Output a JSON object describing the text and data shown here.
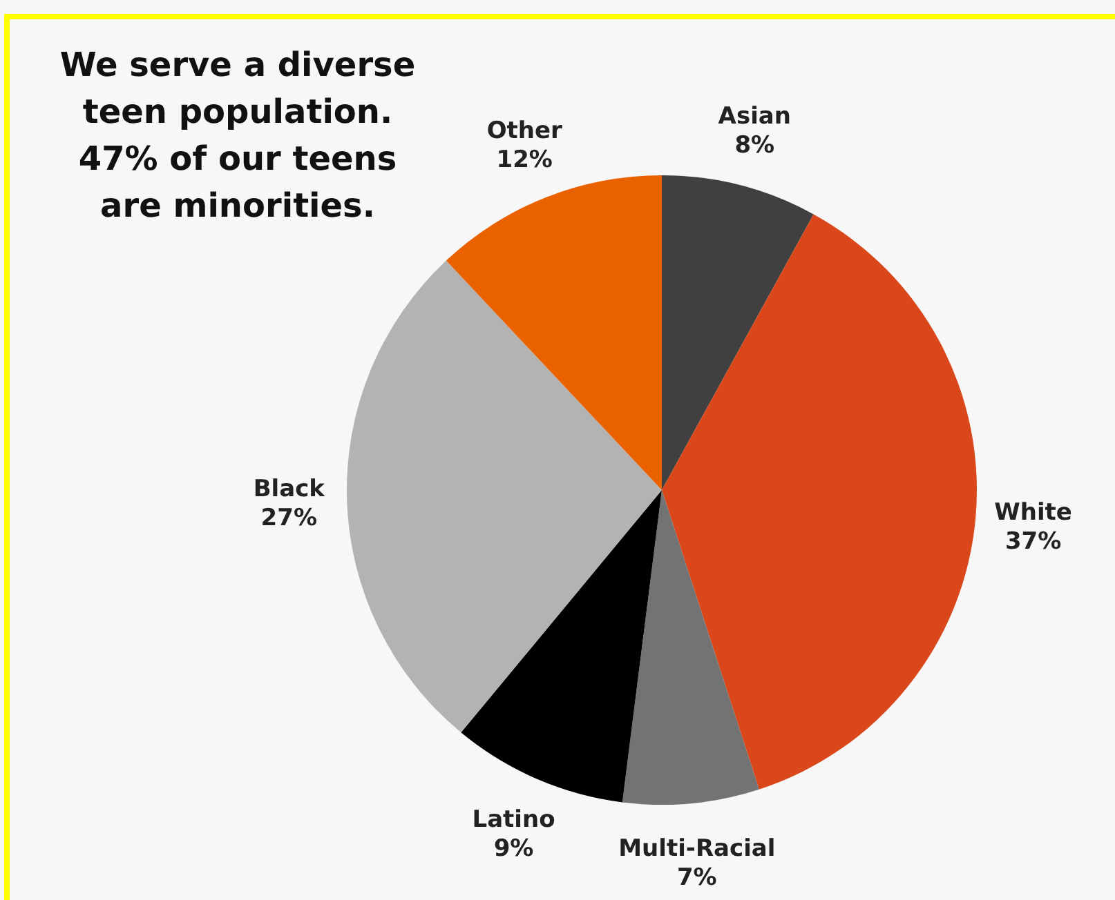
{
  "chart_data": {
    "type": "pie",
    "title": "We serve a diverse teen population. 47% of our teens are minorities.",
    "categories": [
      "Asian",
      "White",
      "Multi-Racial",
      "Latino",
      "Black",
      "Other"
    ],
    "values": [
      8,
      37,
      7,
      9,
      27,
      12
    ],
    "value_labels": [
      "8%",
      "37%",
      "7%",
      "9%",
      "27%",
      "12%"
    ],
    "colors": [
      "#404040",
      "#d9471a",
      "#737373",
      "#000000",
      "#b3b3b3",
      "#ea6100"
    ]
  }
}
